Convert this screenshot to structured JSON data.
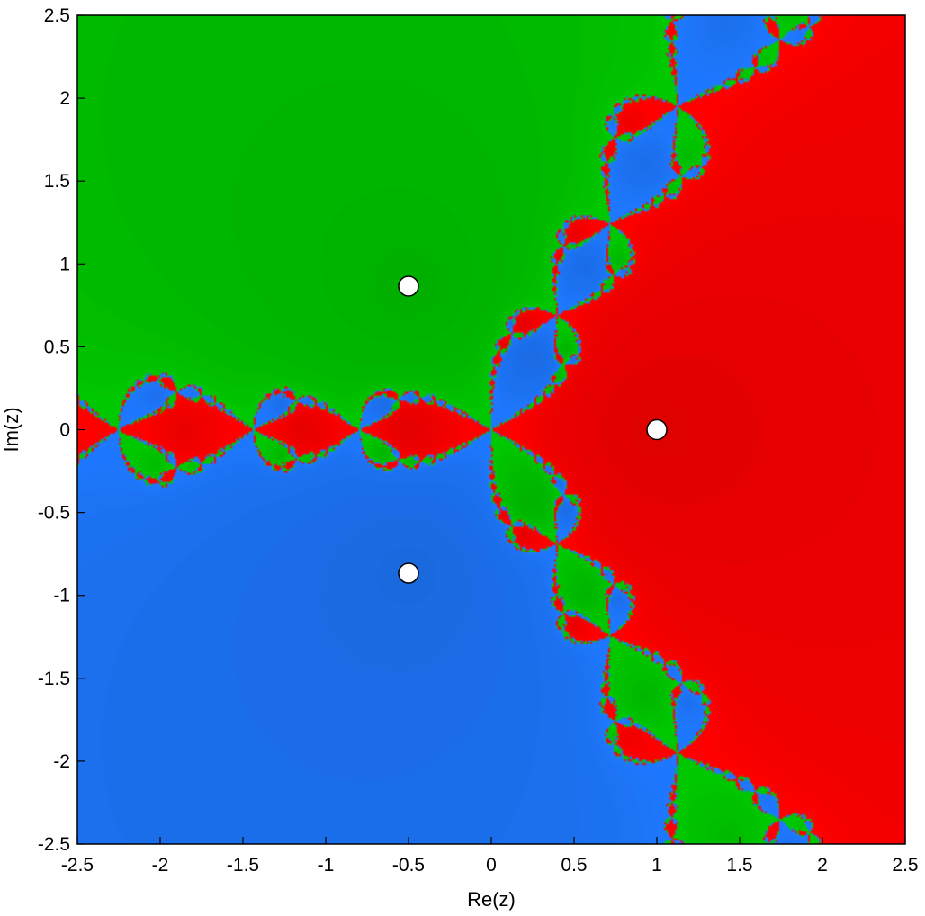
{
  "chart_data": {
    "type": "heatmap",
    "title": "",
    "xlabel": "Re(z)",
    "ylabel": "Im(z)",
    "xlim": [
      -2.5,
      2.5
    ],
    "ylim": [
      -2.5,
      2.5
    ],
    "x_ticks": [
      -2.5,
      -2,
      -1.5,
      -1,
      -0.5,
      0,
      0.5,
      1,
      1.5,
      2,
      2.5
    ],
    "x_tick_labels": [
      "-2.5",
      "-2",
      "-1.5",
      "-1",
      "-0.5",
      "0",
      "0.5",
      "1",
      "1.5",
      "2",
      "2.5"
    ],
    "y_ticks": [
      -2.5,
      -2,
      -1.5,
      -1,
      -0.5,
      0,
      0.5,
      1,
      1.5,
      2,
      2.5
    ],
    "y_tick_labels": [
      "-2.5",
      "-2",
      "-1.5",
      "-1",
      "-0.5",
      "0",
      "0.5",
      "1",
      "1.5",
      "2",
      "2.5"
    ],
    "grid": false,
    "legend": "none",
    "colors": {
      "basin_root_1": "#ff0000",
      "basin_root_2": "#00c800",
      "basin_root_3": "#1e78ff",
      "non_converging": "#000000",
      "root_marker": "#ffffff"
    },
    "roots": [
      {
        "re": 1,
        "im": 0
      },
      {
        "re": -0.5,
        "im": 0.866
      },
      {
        "re": -0.5,
        "im": -0.866
      }
    ]
  }
}
